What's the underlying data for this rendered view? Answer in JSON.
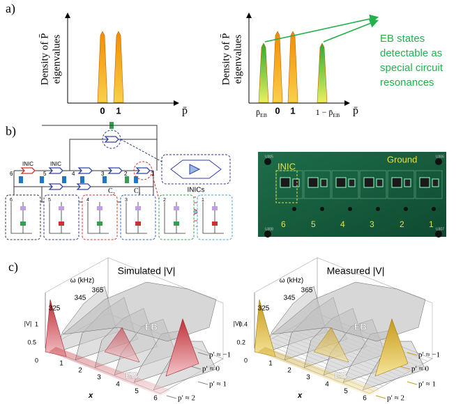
{
  "panel_a": {
    "label": "a)",
    "left": {
      "y_axis_label": [
        "Density of P̄",
        "eigenvalues"
      ],
      "ticks": [
        "0",
        "1"
      ],
      "x_label": "p̄"
    },
    "right": {
      "y_axis_label": [
        "Density of P̄",
        "eigenvalues"
      ],
      "ticks": [
        {
          "base": "p̄",
          "sub": "EB"
        },
        "0",
        "1",
        {
          "base": "1 − p̄",
          "sub": "EB"
        }
      ],
      "x_label": "p̄"
    },
    "annotation": [
      "EB states",
      "detectable as",
      "special circuit",
      "resonances"
    ]
  },
  "panel_b": {
    "label": "b)",
    "circuit": {
      "inic_labels": [
        "INIC",
        "INIC"
      ],
      "nodes": [
        "6",
        "5",
        "4",
        "3",
        "2",
        "1"
      ],
      "capacitors": [
        {
          "base": "C",
          "sub": "2"
        },
        {
          "base": "C",
          "sub": "1"
        }
      ],
      "inics_label": "INICs"
    },
    "photo": {
      "inic": "INIC",
      "ground": "Ground",
      "nodes": [
        "6",
        "5",
        "4",
        "3",
        "2",
        "1"
      ],
      "corner_labels": [
        "U305",
        "U306",
        "U308",
        "U307"
      ]
    }
  },
  "panel_c": {
    "label": "c)",
    "simulated": {
      "title": "Simulated |V|",
      "omega_label": "ω (kHz)",
      "omega_ticks": [
        "365",
        "345",
        "325"
      ],
      "v_label": "|V|",
      "v_ticks": [
        "0",
        "0.5",
        "1"
      ],
      "x_label": "x",
      "x_ticks": [
        "1",
        "2",
        "3",
        "4",
        "5",
        "6"
      ],
      "eb_labels": [
        "EB",
        "EB"
      ],
      "p_labels": [
        "p′ ≈ −1",
        "p′ ≈ 0",
        "p′ ≈ 1",
        "p′ ≈ 2"
      ]
    },
    "measured": {
      "title": "Measured |V|",
      "omega_label": "ω (kHz)",
      "omega_ticks": [
        "365",
        "345",
        "325"
      ],
      "v_label": "|V|",
      "v_ticks": [
        "0",
        "0.2",
        "0.4"
      ],
      "x_label": "x",
      "x_ticks": [
        "1",
        "2",
        "3",
        "4",
        "5",
        "6"
      ],
      "eb_labels": [
        "EB",
        "EB"
      ],
      "p_labels": [
        "p′ ≈ −1",
        "p′ ≈ 0",
        "p′ ≈ 1",
        "p′ ≈ 2"
      ]
    }
  }
}
